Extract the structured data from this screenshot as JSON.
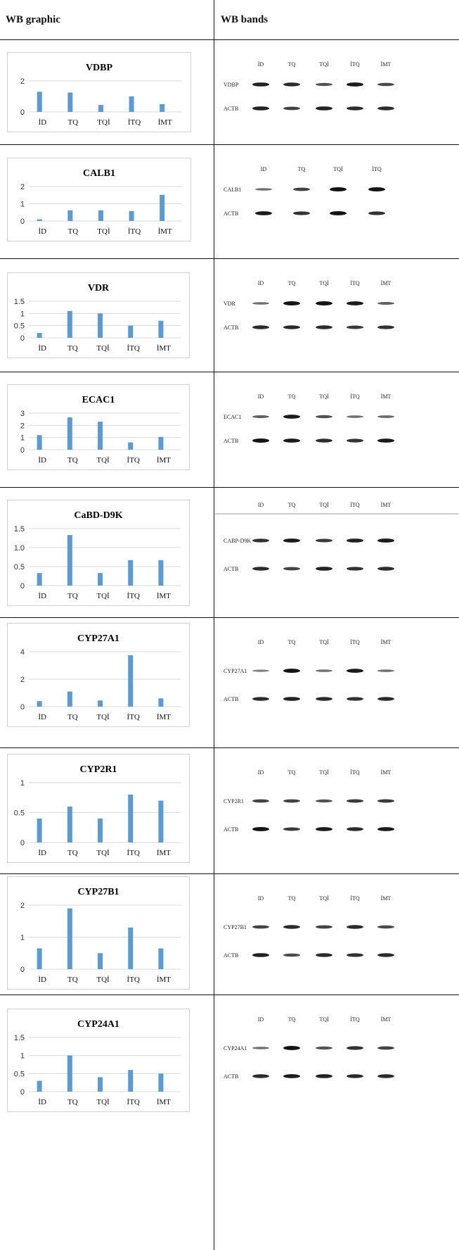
{
  "header": {
    "left": "WB graphic",
    "right": "WB bands"
  },
  "style": {
    "bar_color": "#5B9BD5",
    "grid_color": "#d9d9d9",
    "band_color": "#141414"
  },
  "chart_data": [
    {
      "type": "bar",
      "title": "VDBP",
      "categories": [
        "İD",
        "TQ",
        "TQİ",
        "İTQ",
        "İMT"
      ],
      "values": [
        1.3,
        1.25,
        0.45,
        1.0,
        0.5
      ],
      "ylim": [
        0,
        2
      ],
      "yticks": [
        "0",
        "2"
      ],
      "grid": true
    },
    {
      "type": "bar",
      "title": "CALB1",
      "categories": [
        "İD",
        "TQ",
        "TQİ",
        "İTQ",
        "İMT"
      ],
      "values": [
        0.1,
        0.62,
        0.62,
        0.58,
        1.52
      ],
      "ylim": [
        0,
        2
      ],
      "yticks": [
        "0",
        "1",
        "2"
      ],
      "grid": true
    },
    {
      "type": "bar",
      "title": "VDR",
      "categories": [
        "İD",
        "TQ",
        "TQİ",
        "İTQ",
        "İMT"
      ],
      "values": [
        0.2,
        1.1,
        1.0,
        0.5,
        0.7
      ],
      "ylim": [
        0,
        1.5
      ],
      "yticks": [
        "0",
        "0.5",
        "1",
        "1.5"
      ],
      "grid": true
    },
    {
      "type": "bar",
      "title": "ECAC1",
      "categories": [
        "İD",
        "TQ",
        "TQİ",
        "İTQ",
        "İMT"
      ],
      "values": [
        1.2,
        2.65,
        2.3,
        0.6,
        1.05
      ],
      "ylim": [
        0,
        3
      ],
      "yticks": [
        "0",
        "1",
        "2",
        "3"
      ],
      "grid": true
    },
    {
      "type": "bar",
      "title": "CaBD-D9K",
      "categories": [
        "İD",
        "TQ",
        "TQİ",
        "İTQ",
        "İMT"
      ],
      "values": [
        0.33,
        1.33,
        0.33,
        0.67,
        0.67
      ],
      "ylim": [
        0,
        1.5
      ],
      "yticks": [
        "0",
        "0.5",
        "1.0",
        "1.5"
      ],
      "grid": true
    },
    {
      "type": "bar",
      "title": "CYP27A1",
      "categories": [
        "İD",
        "TQ",
        "TQİ",
        "İTQ",
        "İMT"
      ],
      "values": [
        0.4,
        1.1,
        0.45,
        3.75,
        0.6
      ],
      "ylim": [
        0,
        4
      ],
      "yticks": [
        "0",
        "2",
        "4"
      ],
      "grid": true
    },
    {
      "type": "bar",
      "title": "CYP2R1",
      "categories": [
        "İD",
        "TQ",
        "TQİ",
        "İTQ",
        "İMT"
      ],
      "values": [
        0.4,
        0.6,
        0.4,
        0.8,
        0.7
      ],
      "ylim": [
        0,
        1
      ],
      "yticks": [
        "0",
        "0.5",
        "1"
      ],
      "grid": true
    },
    {
      "type": "bar",
      "title": "CYP27B1",
      "categories": [
        "İD",
        "TQ",
        "TQİ",
        "İTQ",
        "İMT"
      ],
      "values": [
        0.65,
        1.9,
        0.5,
        1.3,
        0.65
      ],
      "ylim": [
        0,
        2
      ],
      "yticks": [
        "0",
        "1",
        "2"
      ],
      "grid": true
    },
    {
      "type": "bar",
      "title": "CYP24A1",
      "categories": [
        "İD",
        "TQ",
        "TQİ",
        "İTQ",
        "İMT"
      ],
      "values": [
        0.3,
        1.0,
        0.4,
        0.6,
        0.5
      ],
      "ylim": [
        0,
        1.5
      ],
      "yticks": [
        "0",
        "0.5",
        "1",
        "1.5"
      ],
      "grid": true
    }
  ],
  "blots": [
    {
      "lanes": [
        "İD",
        "TQ",
        "TQİ",
        "İTQ",
        "İMT"
      ],
      "protein_label": "VDBP",
      "control_label": "ACTB",
      "protein_intensity": [
        0.9,
        0.85,
        0.6,
        0.95,
        0.65
      ],
      "control_intensity": [
        0.9,
        0.7,
        0.9,
        0.85,
        0.85
      ]
    },
    {
      "lanes": [
        "ID",
        "TQ",
        "TQİ",
        "İTQ"
      ],
      "protein_label": "CALB1",
      "control_label": "ACTB",
      "protein_intensity": [
        0.4,
        0.7,
        1.0,
        1.0
      ],
      "control_intensity": [
        0.95,
        0.8,
        1.0,
        0.8
      ]
    },
    {
      "lanes": [
        "ID",
        "TQ",
        "TQİ",
        "İTQ",
        "İMT"
      ],
      "protein_label": "VDR",
      "control_label": "ACTB",
      "protein_intensity": [
        0.4,
        1.0,
        1.0,
        0.95,
        0.5
      ],
      "control_intensity": [
        0.85,
        0.85,
        0.85,
        0.75,
        0.8
      ]
    },
    {
      "lanes": [
        "ID",
        "TQ",
        "TQİ",
        "İTQ",
        "İMT"
      ],
      "protein_label": "ECAC1",
      "control_label": "ACTB",
      "protein_intensity": [
        0.5,
        0.95,
        0.6,
        0.4,
        0.45
      ],
      "control_intensity": [
        1.0,
        0.95,
        0.85,
        0.8,
        0.95
      ]
    },
    {
      "lanes": [
        "ID",
        "TQ",
        "TQİ",
        "İTQ",
        "İMT"
      ],
      "protein_label": "CABP-D9K",
      "control_label": "ACTB",
      "protein_intensity": [
        0.8,
        0.95,
        0.75,
        0.9,
        0.95
      ],
      "control_intensity": [
        0.85,
        0.7,
        0.9,
        0.8,
        0.85
      ]
    },
    {
      "lanes": [
        "ID",
        "TQ",
        "TQİ",
        "İTQ",
        "İMT"
      ],
      "protein_label": "CYP27A1",
      "control_label": "ACTB",
      "protein_intensity": [
        0.3,
        1.0,
        0.4,
        0.95,
        0.4
      ],
      "control_intensity": [
        0.85,
        0.9,
        0.85,
        0.8,
        0.85
      ]
    },
    {
      "lanes": [
        "ID",
        "TQ",
        "TQİ",
        "İTQ",
        "İMT"
      ],
      "protein_label": "CYP2R1",
      "control_label": "ACTB",
      "protein_intensity": [
        0.7,
        0.7,
        0.6,
        0.75,
        0.75
      ],
      "control_intensity": [
        1.0,
        0.75,
        0.95,
        0.85,
        0.95
      ]
    },
    {
      "lanes": [
        "ID",
        "TQ",
        "TQİ",
        "İTQ",
        "İMT"
      ],
      "protein_label": "CYP27B1",
      "control_label": "ACTB",
      "protein_intensity": [
        0.7,
        0.85,
        0.7,
        0.85,
        0.65
      ],
      "control_intensity": [
        0.9,
        0.65,
        0.85,
        0.8,
        0.85
      ]
    },
    {
      "lanes": [
        "ID",
        "TQ",
        "TQİ",
        "İTQ",
        "İMT"
      ],
      "protein_label": "CYP24A1",
      "control_label": "ACTB",
      "protein_intensity": [
        0.4,
        1.0,
        0.6,
        0.8,
        0.7
      ],
      "control_intensity": [
        0.85,
        0.95,
        0.9,
        0.85,
        0.85
      ]
    }
  ]
}
